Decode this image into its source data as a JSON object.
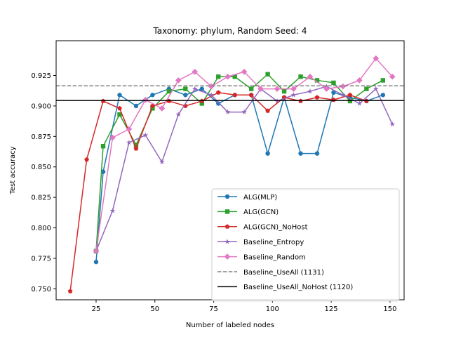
{
  "chart_data": {
    "type": "line",
    "title": "Taxonomy: phylum, Random Seed: 4",
    "xlabel": "Number of labeled nodes",
    "ylabel": "Test accuracy",
    "xlim": [
      8,
      156
    ],
    "ylim": [
      0.741,
      0.9535
    ],
    "xticks": [
      25,
      50,
      75,
      100,
      125,
      150
    ],
    "yticks": [
      0.75,
      0.775,
      0.8,
      0.825,
      0.85,
      0.875,
      0.9,
      0.925
    ],
    "xtick_labels": [
      "25",
      "50",
      "75",
      "100",
      "125",
      "150"
    ],
    "ytick_labels": [
      "0.750",
      "0.775",
      "0.800",
      "0.825",
      "0.850",
      "0.875",
      "0.900",
      "0.925"
    ],
    "grid": false,
    "legend_position": "lower-right",
    "series": [
      {
        "name": "ALG(MLP)",
        "color": "#1f77b4",
        "marker": "circle",
        "linestyle": "solid",
        "x": [
          25,
          28,
          35,
          42,
          49,
          56,
          63,
          70,
          77,
          84,
          91,
          98,
          105,
          112,
          119,
          126,
          133,
          140,
          147
        ],
        "y": [
          0.772,
          0.846,
          0.909,
          0.9,
          0.909,
          0.914,
          0.909,
          0.914,
          0.902,
          0.909,
          0.909,
          0.861,
          0.907,
          0.861,
          0.861,
          0.911,
          0.907,
          0.904,
          0.909
        ]
      },
      {
        "name": "ALG(GCN)",
        "color": "#2ca02c",
        "marker": "square",
        "linestyle": "solid",
        "x": [
          25,
          28,
          35,
          42,
          49,
          56,
          63,
          70,
          77,
          84,
          91,
          98,
          105,
          112,
          119,
          126,
          133,
          140,
          147
        ],
        "y": [
          0.781,
          0.867,
          0.893,
          0.868,
          0.898,
          0.912,
          0.914,
          0.902,
          0.924,
          0.924,
          0.914,
          0.926,
          0.912,
          0.924,
          0.921,
          0.919,
          0.904,
          0.914,
          0.921
        ]
      },
      {
        "name": "ALG(GCN)_NoHost",
        "color": "#d62728",
        "marker": "pentagon",
        "linestyle": "solid",
        "x": [
          14,
          21,
          28,
          35,
          42,
          49,
          56,
          63,
          70,
          77,
          84,
          91,
          98,
          105,
          112,
          119,
          126,
          133,
          140
        ],
        "y": [
          0.748,
          0.856,
          0.904,
          0.898,
          0.865,
          0.9,
          0.904,
          0.9,
          0.904,
          0.911,
          0.909,
          0.909,
          0.896,
          0.907,
          0.904,
          0.907,
          0.905,
          0.909,
          0.904
        ]
      },
      {
        "name": "Baseline_Entropy",
        "color": "#9467bd",
        "marker": "star",
        "linestyle": "solid",
        "x": [
          25,
          32,
          39,
          46,
          53,
          60,
          67,
          74,
          81,
          88,
          95,
          102,
          109,
          116,
          123,
          130,
          137,
          144,
          151
        ],
        "y": [
          0.781,
          0.814,
          0.87,
          0.876,
          0.854,
          0.893,
          0.914,
          0.909,
          0.895,
          0.895,
          0.914,
          0.904,
          0.909,
          0.912,
          0.916,
          0.909,
          0.902,
          0.914,
          0.885
        ]
      },
      {
        "name": "Baseline_Random",
        "color": "#e377c2",
        "marker": "diamond",
        "linestyle": "solid",
        "x": [
          25,
          32,
          39,
          46,
          53,
          60,
          67,
          74,
          81,
          88,
          95,
          102,
          109,
          116,
          123,
          130,
          137,
          144,
          151
        ],
        "y": [
          0.781,
          0.874,
          0.881,
          0.905,
          0.898,
          0.921,
          0.928,
          0.916,
          0.924,
          0.928,
          0.914,
          0.914,
          0.914,
          0.924,
          0.914,
          0.916,
          0.921,
          0.939,
          0.924
        ]
      },
      {
        "name": "Baseline_UseAll (1131)",
        "color": "#808080",
        "marker": "none",
        "linestyle": "dashed",
        "hline": 0.9165
      },
      {
        "name": "Baseline_UseAll_NoHost (1120)",
        "color": "#000000",
        "marker": "none",
        "linestyle": "solid",
        "hline": 0.9045
      }
    ]
  }
}
